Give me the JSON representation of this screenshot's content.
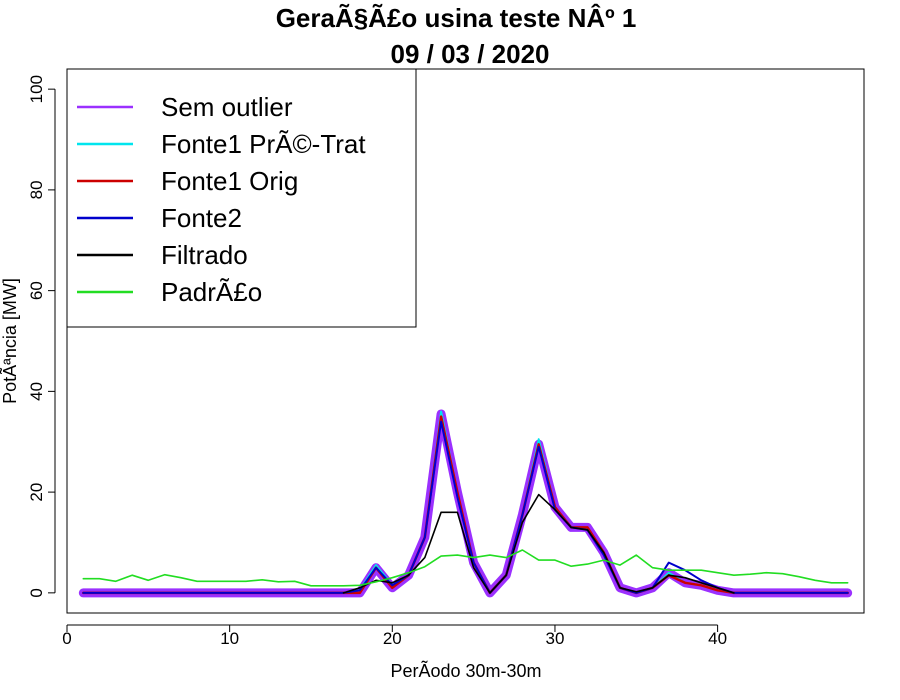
{
  "chart_data": {
    "type": "line",
    "title": "GeraÃ§Ã£o usina teste NÂº 1",
    "subtitle": "09 / 03 / 2020",
    "xlabel": "PerÃ­odo 30m-30m",
    "ylabel": "PotÃªncia [MW]",
    "xlim": [
      0,
      49
    ],
    "ylim": [
      -4,
      104
    ],
    "x_ticks": [
      0,
      10,
      20,
      30,
      40
    ],
    "y_ticks": [
      0,
      20,
      40,
      60,
      80,
      100
    ],
    "legend_position": "top-left",
    "x": [
      1,
      2,
      3,
      4,
      5,
      6,
      7,
      8,
      9,
      10,
      11,
      12,
      13,
      14,
      15,
      16,
      17,
      18,
      19,
      20,
      21,
      22,
      23,
      24,
      25,
      26,
      27,
      28,
      29,
      30,
      31,
      32,
      33,
      34,
      35,
      36,
      37,
      38,
      39,
      40,
      41,
      42,
      43,
      44,
      45,
      46,
      47,
      48
    ],
    "series": [
      {
        "name": "Sem outlier",
        "color": "#9b30ff",
        "width": 9,
        "values": [
          0,
          0,
          0,
          0,
          0,
          0,
          0,
          0,
          0,
          0,
          0,
          0,
          0,
          0,
          0,
          0,
          0,
          0,
          5,
          1,
          3.5,
          11,
          35.5,
          20,
          6,
          0,
          3.5,
          15.5,
          29.5,
          17,
          13,
          13,
          8,
          1,
          0,
          1,
          4,
          2,
          1.5,
          0.5,
          0,
          0,
          0,
          0,
          0,
          0,
          0,
          0
        ]
      },
      {
        "name": "Fonte1 PrÃ©-Trat",
        "color": "#00e5ee",
        "width": 2,
        "values": [
          0,
          0,
          0,
          0,
          0,
          0,
          0,
          0,
          0,
          0,
          0,
          0,
          0,
          0,
          0,
          0,
          0,
          0.5,
          5.5,
          1.5,
          3.5,
          11,
          36,
          20,
          6,
          0,
          3.5,
          15.5,
          30.5,
          17,
          13,
          13,
          8,
          1,
          0,
          1,
          4,
          2,
          1.5,
          0.5,
          0,
          0,
          0,
          0,
          0,
          0,
          0,
          0
        ]
      },
      {
        "name": "Fonte1 Orig",
        "color": "#cc0000",
        "width": 2.5,
        "values": [
          0,
          0,
          0,
          0,
          0,
          0,
          0,
          0,
          0,
          0,
          0,
          0,
          0,
          0,
          0,
          0,
          0,
          0,
          5,
          1,
          3.5,
          11,
          35,
          20,
          6,
          0,
          3.5,
          15.5,
          29.5,
          17,
          13,
          13,
          8,
          1,
          0,
          1,
          3.5,
          2,
          1.5,
          0.5,
          0,
          0,
          0,
          0,
          0,
          0,
          0,
          0
        ]
      },
      {
        "name": "Fonte2",
        "color": "#0000cc",
        "width": 2,
        "values": [
          0,
          0,
          0,
          0,
          0,
          0,
          0,
          0,
          0,
          0,
          0,
          0,
          0,
          0,
          0,
          0,
          0,
          0.5,
          5,
          1.5,
          3.5,
          11,
          34,
          19,
          6,
          0,
          3.5,
          15.5,
          29,
          16.5,
          13,
          12.5,
          7.5,
          1,
          0,
          1,
          6,
          4.5,
          2.5,
          1,
          0,
          0,
          0,
          0,
          0,
          0,
          0,
          0
        ]
      },
      {
        "name": "Filtrado",
        "color": "#000000",
        "width": 1.6,
        "values": [
          null,
          null,
          null,
          null,
          null,
          null,
          null,
          null,
          null,
          null,
          null,
          null,
          null,
          null,
          null,
          null,
          0,
          1,
          2.5,
          2,
          3.5,
          7,
          16,
          16,
          5,
          0,
          3.5,
          14,
          19.5,
          16.5,
          13,
          12.5,
          8,
          1,
          0.2,
          1,
          3.5,
          3,
          2,
          1,
          0,
          null,
          null,
          null,
          null,
          null,
          null,
          null
        ]
      },
      {
        "name": "PadrÃ£o",
        "color": "#22dd22",
        "width": 1.6,
        "values": [
          2.8,
          2.8,
          2.3,
          3.5,
          2.5,
          3.6,
          3,
          2.3,
          2.3,
          2.3,
          2.3,
          2.6,
          2.2,
          2.3,
          1.4,
          1.4,
          1.4,
          1.5,
          2.2,
          3,
          4,
          5.2,
          7.3,
          7.5,
          7,
          7.5,
          7,
          8.5,
          6.5,
          6.5,
          5.3,
          5.7,
          6.5,
          5.5,
          7.5,
          5,
          4.5,
          4.5,
          4.5,
          4,
          3.5,
          3.7,
          4,
          3.8,
          3.2,
          2.5,
          2,
          2
        ]
      }
    ]
  }
}
